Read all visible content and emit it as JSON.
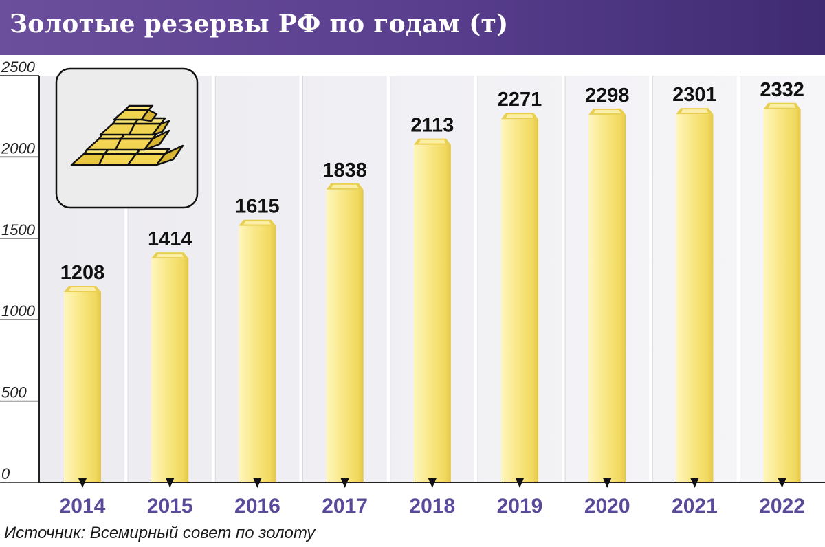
{
  "header": {
    "title": "Золотые резервы РФ по годам (т)"
  },
  "source": "Источник: Всемирный совет по золоту",
  "colors": {
    "header_start": "#6b4f9c",
    "header_end": "#3f2b72",
    "bar_main": "#f6e47e",
    "bar_highlight": "#fff6bd",
    "bar_shadow": "#e8cf4f",
    "year_label": "#5b4a9a",
    "plot_background": "#f1f0f4"
  },
  "icons": {
    "corner": "gold-bars-icon"
  },
  "chart_data": {
    "type": "bar",
    "categories": [
      "2014",
      "2015",
      "2016",
      "2017",
      "2018",
      "2019",
      "2020",
      "2021",
      "2022"
    ],
    "values": [
      1208,
      1414,
      1615,
      1838,
      2113,
      2271,
      2298,
      2301,
      2332
    ],
    "data_labels": [
      "1208",
      "1414",
      "1615",
      "1838",
      "2113",
      "2271",
      "2298",
      "2301",
      "2332"
    ],
    "yticks": [
      0,
      500,
      1000,
      1500,
      2000,
      2500
    ],
    "ytick_labels": [
      "0",
      "500",
      "1000",
      "1500",
      "2000",
      "2500"
    ],
    "ylim": [
      0,
      2500
    ],
    "grid": true,
    "title": "Золотые резервы РФ по годам (т)",
    "xlabel": "",
    "ylabel": ""
  }
}
